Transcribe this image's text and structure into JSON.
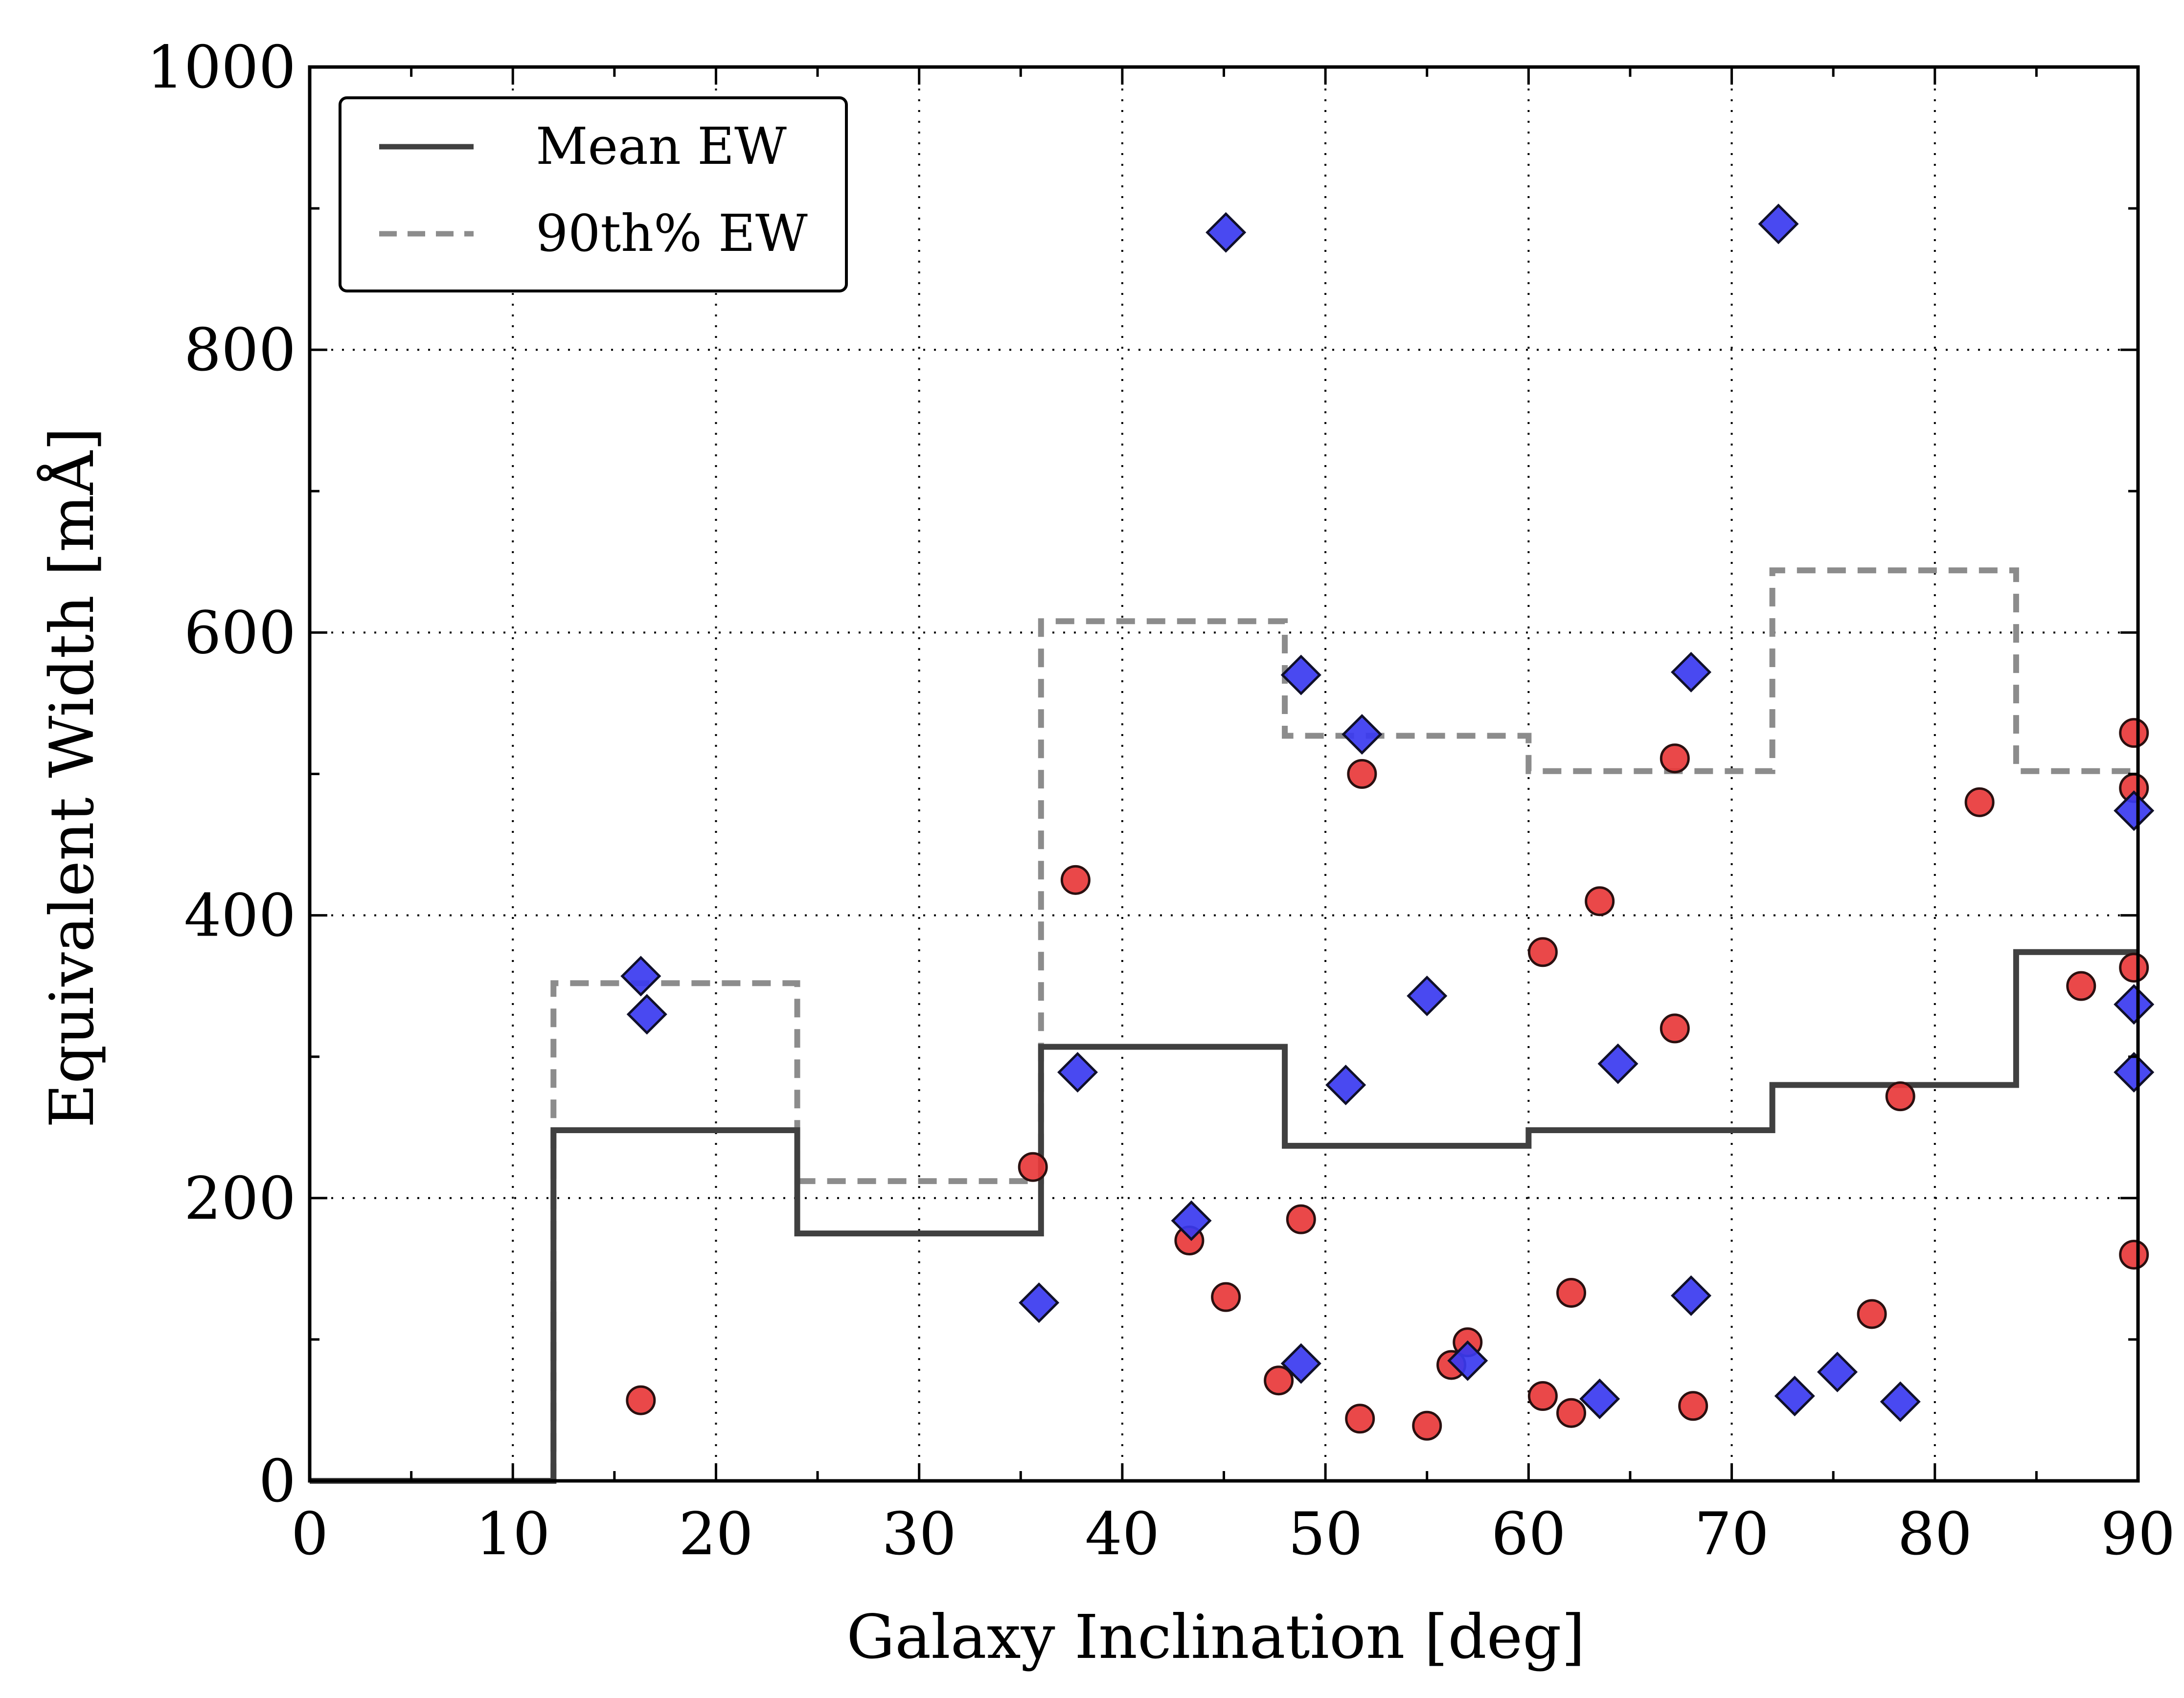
{
  "chart_data": {
    "type": "scatter",
    "xlabel": "Galaxy Inclination [deg]",
    "ylabel": "Equivalent Width [mÅ]",
    "xlim": [
      0,
      90
    ],
    "ylim": [
      0,
      1000
    ],
    "x_ticks": [
      0,
      10,
      20,
      30,
      40,
      50,
      60,
      70,
      80,
      90
    ],
    "y_ticks": [
      0,
      200,
      400,
      600,
      800,
      1000
    ],
    "grid": true,
    "legend_position": "top-left",
    "colors": {
      "red_points": "#e8383a",
      "blue_points": "#3a3af0",
      "mean_line": "#404040",
      "p90_line": "#8c8c8c"
    },
    "step_series": [
      {
        "name": "Mean EW",
        "style": "solid",
        "color": "#404040",
        "bins": [
          [
            0,
            12
          ],
          [
            12,
            24
          ],
          [
            24,
            36
          ],
          [
            36,
            48
          ],
          [
            48,
            60
          ],
          [
            60,
            72
          ],
          [
            72,
            84
          ],
          [
            84,
            90
          ]
        ],
        "values": [
          0,
          248,
          175,
          307,
          237,
          248,
          280,
          374
        ]
      },
      {
        "name": "90th% EW",
        "style": "dashed",
        "color": "#8c8c8c",
        "bins": [
          [
            0,
            12
          ],
          [
            12,
            24
          ],
          [
            24,
            36
          ],
          [
            36,
            48
          ],
          [
            48,
            60
          ],
          [
            60,
            72
          ],
          [
            72,
            84
          ],
          [
            84,
            90
          ]
        ],
        "values": [
          0,
          352,
          212,
          608,
          527,
          502,
          644,
          502
        ]
      }
    ],
    "points_red": [
      [
        16.3,
        57
      ],
      [
        35.6,
        222
      ],
      [
        37.7,
        425
      ],
      [
        43.3,
        170
      ],
      [
        45.1,
        130
      ],
      [
        47.7,
        71
      ],
      [
        48.8,
        185
      ],
      [
        51.7,
        44
      ],
      [
        51.8,
        500
      ],
      [
        55.0,
        39
      ],
      [
        56.2,
        82
      ],
      [
        57.0,
        98
      ],
      [
        60.7,
        374
      ],
      [
        60.7,
        60
      ],
      [
        62.1,
        133
      ],
      [
        62.1,
        48
      ],
      [
        63.5,
        410
      ],
      [
        67.2,
        320
      ],
      [
        67.2,
        511
      ],
      [
        68.1,
        53
      ],
      [
        76.9,
        118
      ],
      [
        78.3,
        272
      ],
      [
        82.2,
        480
      ],
      [
        87.2,
        350
      ],
      [
        89.8,
        529
      ],
      [
        89.8,
        490
      ],
      [
        89.8,
        363
      ],
      [
        89.8,
        160
      ]
    ],
    "points_blue": [
      [
        16.3,
        357
      ],
      [
        16.6,
        330
      ],
      [
        35.9,
        126
      ],
      [
        37.8,
        289
      ],
      [
        43.4,
        184
      ],
      [
        45.1,
        883
      ],
      [
        48.8,
        83
      ],
      [
        48.8,
        570
      ],
      [
        51.0,
        280
      ],
      [
        51.8,
        528
      ],
      [
        55.0,
        343
      ],
      [
        57.0,
        85
      ],
      [
        63.5,
        58
      ],
      [
        64.4,
        295
      ],
      [
        68.0,
        131
      ],
      [
        68.0,
        572
      ],
      [
        72.3,
        889
      ],
      [
        73.1,
        60
      ],
      [
        75.2,
        77
      ],
      [
        78.3,
        56
      ],
      [
        89.8,
        474
      ],
      [
        89.8,
        337
      ],
      [
        89.8,
        289
      ]
    ]
  }
}
